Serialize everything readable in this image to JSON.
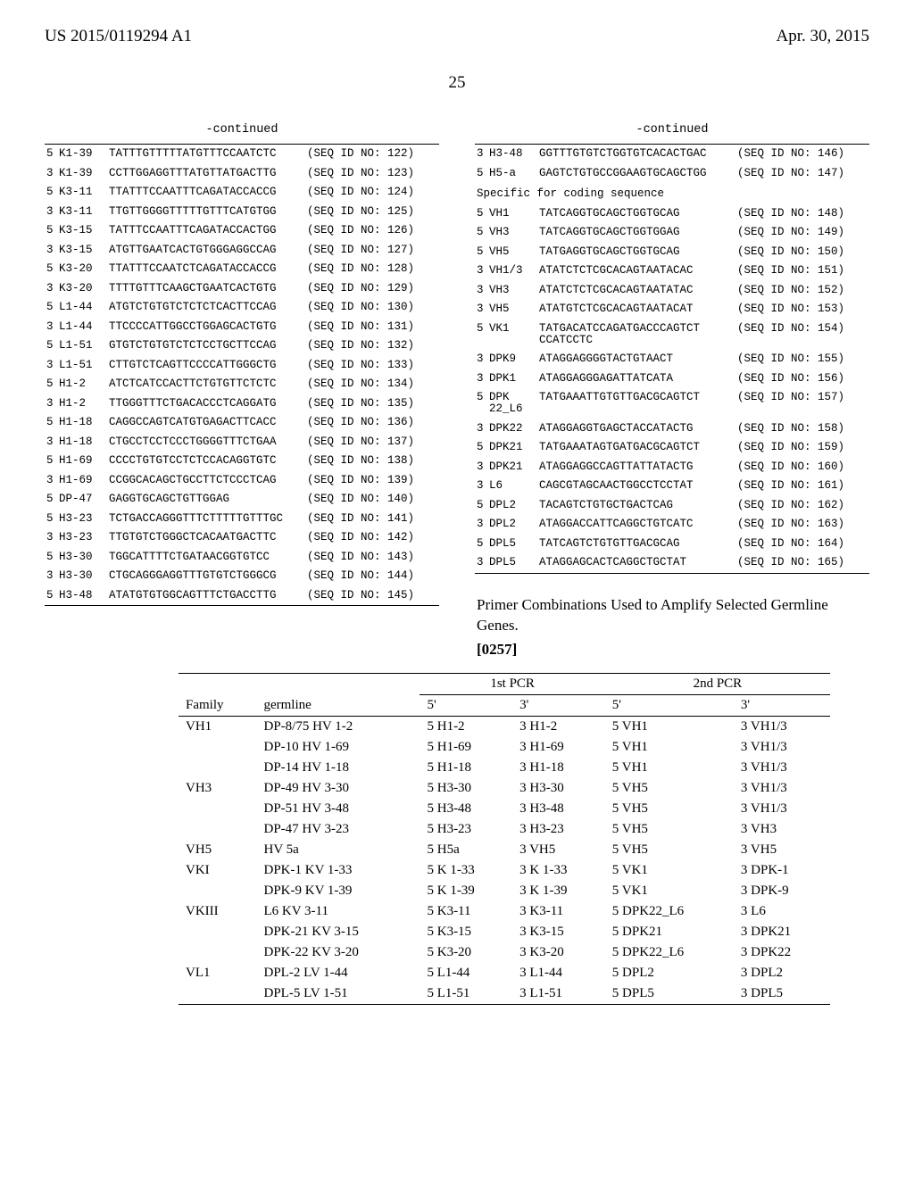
{
  "header": {
    "publication": "US 2015/0119294 A1",
    "date": "Apr. 30, 2015",
    "page_number": "25"
  },
  "continued_label": "-continued",
  "left_table": [
    {
      "p": "5",
      "id": "K1-39",
      "seq": "TATTTGTTTTTATGTTTCCAATCTC",
      "sid": "(SEQ ID NO: 122)"
    },
    {
      "p": "3",
      "id": "K1-39",
      "seq": "CCTTGGAGGTTTATGTTATGACTTG",
      "sid": "(SEQ ID NO: 123)"
    },
    {
      "p": "5",
      "id": "K3-11",
      "seq": "TTATTTCCAATTTCAGATACCACCG",
      "sid": "(SEQ ID NO: 124)"
    },
    {
      "p": "3",
      "id": "K3-11",
      "seq": "TTGTTGGGGTTTTTGTTTCATGTGG",
      "sid": "(SEQ ID NO: 125)"
    },
    {
      "p": "5",
      "id": "K3-15",
      "seq": "TATTTCCAATTTCAGATACCACTGG",
      "sid": "(SEQ ID NO: 126)"
    },
    {
      "p": "3",
      "id": "K3-15",
      "seq": "ATGTTGAATCACTGTGGGAGGCCAG",
      "sid": "(SEQ ID NO: 127)"
    },
    {
      "p": "5",
      "id": "K3-20",
      "seq": "TTATTTCCAATCTCAGATACCACCG",
      "sid": "(SEQ ID NO: 128)"
    },
    {
      "p": "3",
      "id": "K3-20",
      "seq": "TTTTGTTTCAAGCTGAATCACTGTG",
      "sid": "(SEQ ID NO: 129)"
    },
    {
      "p": "5",
      "id": "L1-44",
      "seq": "ATGTCTGTGTCTCTCTCACTTCCAG",
      "sid": "(SEQ ID NO: 130)"
    },
    {
      "p": "3",
      "id": "L1-44",
      "seq": "TTCCCCATTGGCCTGGAGCACTGTG",
      "sid": "(SEQ ID NO: 131)"
    },
    {
      "p": "5",
      "id": "L1-51",
      "seq": "GTGTCTGTGTCTCTCCTGCTTCCAG",
      "sid": "(SEQ ID NO: 132)"
    },
    {
      "p": "3",
      "id": "L1-51",
      "seq": "CTTGTCTCAGTTCCCCATTGGGCTG",
      "sid": "(SEQ ID NO: 133)"
    },
    {
      "p": "5",
      "id": "H1-2",
      "seq": "ATCTCATCCACTTCTGTGTTCTCTC",
      "sid": "(SEQ ID NO: 134)"
    },
    {
      "p": "3",
      "id": "H1-2",
      "seq": "TTGGGTTTCTGACACCCTCAGGATG",
      "sid": "(SEQ ID NO: 135)"
    },
    {
      "p": "5",
      "id": "H1-18",
      "seq": "CAGGCCAGTCATGTGAGACTTCACC",
      "sid": "(SEQ ID NO: 136)"
    },
    {
      "p": "3",
      "id": "H1-18",
      "seq": "CTGCCTCCTCCCTGGGGTTTCTGAA",
      "sid": "(SEQ ID NO: 137)"
    },
    {
      "p": "5",
      "id": "H1-69",
      "seq": "CCCCTGTGTCCTCTCCACAGGTGTC",
      "sid": "(SEQ ID NO: 138)"
    },
    {
      "p": "3",
      "id": "H1-69",
      "seq": "CCGGCACAGCTGCCTTCTCCCTCAG",
      "sid": "(SEQ ID NO: 139)"
    },
    {
      "p": "5",
      "id": "DP-47",
      "seq": "GAGGTGCAGCTGTTGGAG",
      "sid": "(SEQ ID NO: 140)"
    },
    {
      "p": "5",
      "id": "H3-23",
      "seq": "TCTGACCAGGGTTTCTTTTTGTTTGC",
      "sid": "(SEQ ID NO: 141)"
    },
    {
      "p": "3",
      "id": "H3-23",
      "seq": "TTGTGTCTGGGCTCACAATGACTTC",
      "sid": "(SEQ ID NO: 142)"
    },
    {
      "p": "5",
      "id": "H3-30",
      "seq": "TGGCATTTTCTGATAACGGTGTCC",
      "sid": "(SEQ ID NO: 143)"
    },
    {
      "p": "3",
      "id": "H3-30",
      "seq": "CTGCAGGGAGGTTTGTGTCTGGGCG",
      "sid": "(SEQ ID NO: 144)"
    },
    {
      "p": "5",
      "id": "H3-48",
      "seq": "ATATGTGTGGCAGTTTCTGACCTTG",
      "sid": "(SEQ ID NO: 145)"
    }
  ],
  "right_table_a": [
    {
      "p": "3",
      "id": "H3-48",
      "seq": "GGTTTGTGTCTGGTGTCACACTGAC",
      "sid": "(SEQ ID NO: 146)"
    },
    {
      "p": "5",
      "id": "H5-a",
      "seq": "GAGTCTGTGCCGGAAGTGCAGCTGG",
      "sid": "(SEQ ID NO: 147)"
    }
  ],
  "specific_caption": "Specific for coding sequence",
  "right_table_b": [
    {
      "p": "5",
      "id": "VH1",
      "seq": "TATCAGGTGCAGCTGGTGCAG",
      "sid": "(SEQ ID NO: 148)"
    },
    {
      "p": "5",
      "id": "VH3",
      "seq": "TATCAGGTGCAGCTGGTGGAG",
      "sid": "(SEQ ID NO: 149)"
    },
    {
      "p": "5",
      "id": "VH5",
      "seq": "TATGAGGTGCAGCTGGTGCAG",
      "sid": "(SEQ ID NO: 150)"
    },
    {
      "p": "3",
      "id": "VH1/3",
      "seq": "ATATCTCTCGCACAGTAATACAC",
      "sid": "(SEQ ID NO: 151)"
    },
    {
      "p": "3",
      "id": "VH3",
      "seq": "ATATCTCTCGCACAGTAATATAC",
      "sid": "(SEQ ID NO: 152)"
    },
    {
      "p": "3",
      "id": "VH5",
      "seq": "ATATGTCTCGCACAGTAATACAT",
      "sid": "(SEQ ID NO: 153)"
    },
    {
      "p": "5",
      "id": "VK1",
      "seq": "TATGACATCCAGATGACCCAGTCT\nCCATCCTC",
      "sid": "(SEQ ID NO: 154)"
    },
    {
      "p": "3",
      "id": "DPK9",
      "seq": "ATAGGAGGGGTACTGTAACT",
      "sid": "(SEQ ID NO: 155)"
    },
    {
      "p": "3",
      "id": "DPK1",
      "seq": "ATAGGAGGGAGATTATCATA",
      "sid": "(SEQ ID NO: 156)"
    },
    {
      "p": "5",
      "id": "DPK\n22_L6",
      "seq": "TATGAAATTGTGTTGACGCAGTCT",
      "sid": "(SEQ ID NO: 157)"
    },
    {
      "p": "3",
      "id": "DPK22",
      "seq": "ATAGGAGGTGAGCTACCATACTG",
      "sid": "(SEQ ID NO: 158)"
    },
    {
      "p": "5",
      "id": "DPK21",
      "seq": "TATGAAATAGTGATGACGCAGTCT",
      "sid": "(SEQ ID NO: 159)"
    },
    {
      "p": "3",
      "id": "DPK21",
      "seq": "ATAGGAGGCCAGTTATTATACTG",
      "sid": "(SEQ ID NO: 160)"
    },
    {
      "p": "3",
      "id": "L6",
      "seq": "CAGCGTAGCAACTGGCCTCCTAT",
      "sid": "(SEQ ID NO: 161)"
    },
    {
      "p": "5",
      "id": "DPL2",
      "seq": "TACAGTCTGTGCTGACTCAG",
      "sid": "(SEQ ID NO: 162)"
    },
    {
      "p": "3",
      "id": "DPL2",
      "seq": "ATAGGACCATTCAGGCTGTCATC",
      "sid": "(SEQ ID NO: 163)"
    },
    {
      "p": "5",
      "id": "DPL5",
      "seq": "TATCAGTCTGTGTTGACGCAG",
      "sid": "(SEQ ID NO: 164)"
    },
    {
      "p": "3",
      "id": "DPL5",
      "seq": "ATAGGAGCACTCAGGCTGCTAT",
      "sid": "(SEQ ID NO: 165)"
    }
  ],
  "primer_caption": "Primer Combinations Used to Amplify Selected Germline Genes.",
  "para_num": "[0257]",
  "pcr": {
    "group_headers": [
      "1st PCR",
      "2nd PCR"
    ],
    "col_headers": [
      "Family",
      "germline",
      "5'",
      "3'",
      "5'",
      "3'"
    ],
    "rows": [
      [
        "VH1",
        "DP-8/75 HV 1-2",
        "5 H1-2",
        "3 H1-2",
        "5 VH1",
        "3 VH1/3"
      ],
      [
        "",
        "DP-10 HV 1-69",
        "5 H1-69",
        "3 H1-69",
        "5 VH1",
        "3 VH1/3"
      ],
      [
        "",
        "DP-14 HV 1-18",
        "5 H1-18",
        "3 H1-18",
        "5 VH1",
        "3 VH1/3"
      ],
      [
        "VH3",
        "DP-49 HV 3-30",
        "5 H3-30",
        "3 H3-30",
        "5 VH5",
        "3 VH1/3"
      ],
      [
        "",
        "DP-51 HV 3-48",
        "5 H3-48",
        "3 H3-48",
        "5 VH5",
        "3 VH1/3"
      ],
      [
        "",
        "DP-47 HV 3-23",
        "5 H3-23",
        "3 H3-23",
        "5 VH5",
        "3 VH3"
      ],
      [
        "VH5",
        "HV 5a",
        "5 H5a",
        "3 VH5",
        "5 VH5",
        "3 VH5"
      ],
      [
        "VKI",
        "DPK-1 KV 1-33",
        "5 K 1-33",
        "3 K 1-33",
        "5 VK1",
        "3 DPK-1"
      ],
      [
        "",
        "DPK-9 KV 1-39",
        "5 K 1-39",
        "3 K 1-39",
        "5 VK1",
        "3 DPK-9"
      ],
      [
        "VKIII",
        "L6 KV 3-11",
        "5 K3-11",
        "3 K3-11",
        "5 DPK22_L6",
        "3 L6"
      ],
      [
        "",
        "DPK-21 KV 3-15",
        "5 K3-15",
        "3 K3-15",
        "5 DPK21",
        "3 DPK21"
      ],
      [
        "",
        "DPK-22 KV 3-20",
        "5 K3-20",
        "3 K3-20",
        "5 DPK22_L6",
        "3 DPK22"
      ],
      [
        "VL1",
        "DPL-2 LV 1-44",
        "5 L1-44",
        "3 L1-44",
        "5 DPL2",
        "3 DPL2"
      ],
      [
        "",
        "DPL-5 LV 1-51",
        "5 L1-51",
        "3 L1-51",
        "5 DPL5",
        "3 DPL5"
      ]
    ]
  }
}
